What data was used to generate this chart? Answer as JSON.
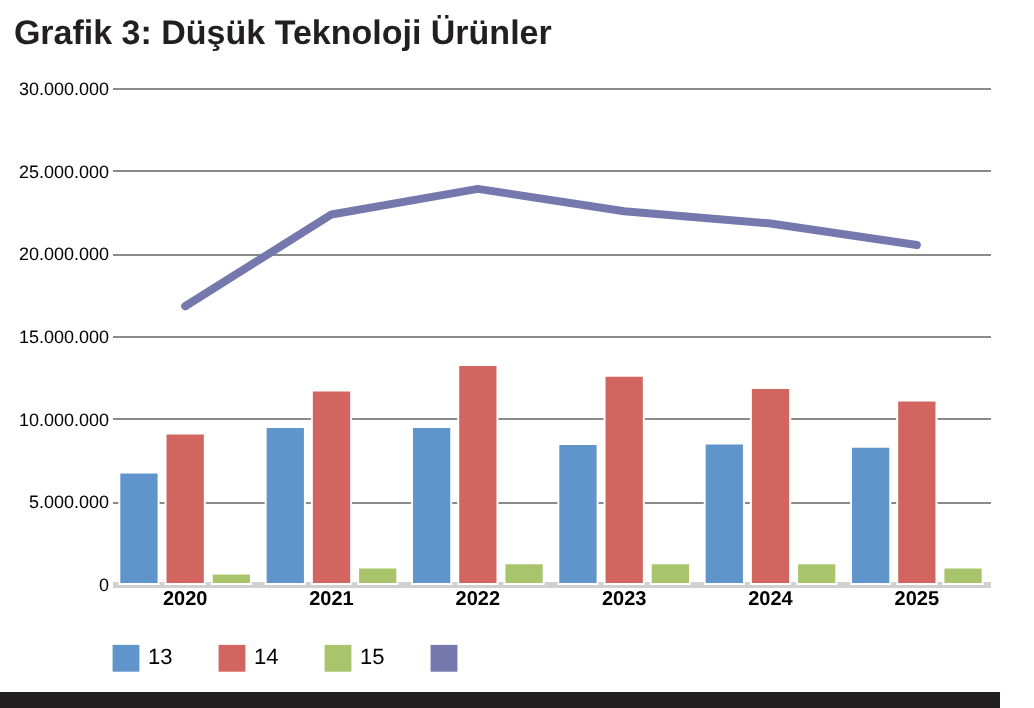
{
  "chart_data": {
    "type": "bar",
    "title": "Grafik 3: Düşük Teknoloji Ürünler",
    "categories": [
      "2020",
      "2021",
      "2022",
      "2023",
      "2024",
      "2025"
    ],
    "series": [
      {
        "name": "13",
        "color": "#5f95cb",
        "values": [
          6750000,
          9500000,
          9500000,
          8470000,
          8500000,
          8300000
        ]
      },
      {
        "name": "14",
        "color": "#d2655f",
        "values": [
          9100000,
          11700000,
          13250000,
          12600000,
          11850000,
          11100000
        ]
      },
      {
        "name": "15",
        "color": "#a8c56b",
        "values": [
          630000,
          1000000,
          1250000,
          1250000,
          1250000,
          1000000
        ]
      },
      {
        "type": "line",
        "color": "#7478ad",
        "values": [
          16800000,
          22350000,
          23900000,
          22550000,
          21800000,
          20500000
        ]
      }
    ],
    "ylim": [
      0,
      30000000
    ],
    "yticks": [
      {
        "value": 0,
        "label": "0"
      },
      {
        "value": 5000000,
        "label": "5.000.000"
      },
      {
        "value": 10000000,
        "label": "10.000.000"
      },
      {
        "value": 15000000,
        "label": "15.000.000"
      },
      {
        "value": 20000000,
        "label": "20.000.000"
      },
      {
        "value": 25000000,
        "label": "25.000.000"
      },
      {
        "value": 30000000,
        "label": "30.000.000"
      }
    ],
    "grid": "y",
    "legend": "bottom"
  }
}
